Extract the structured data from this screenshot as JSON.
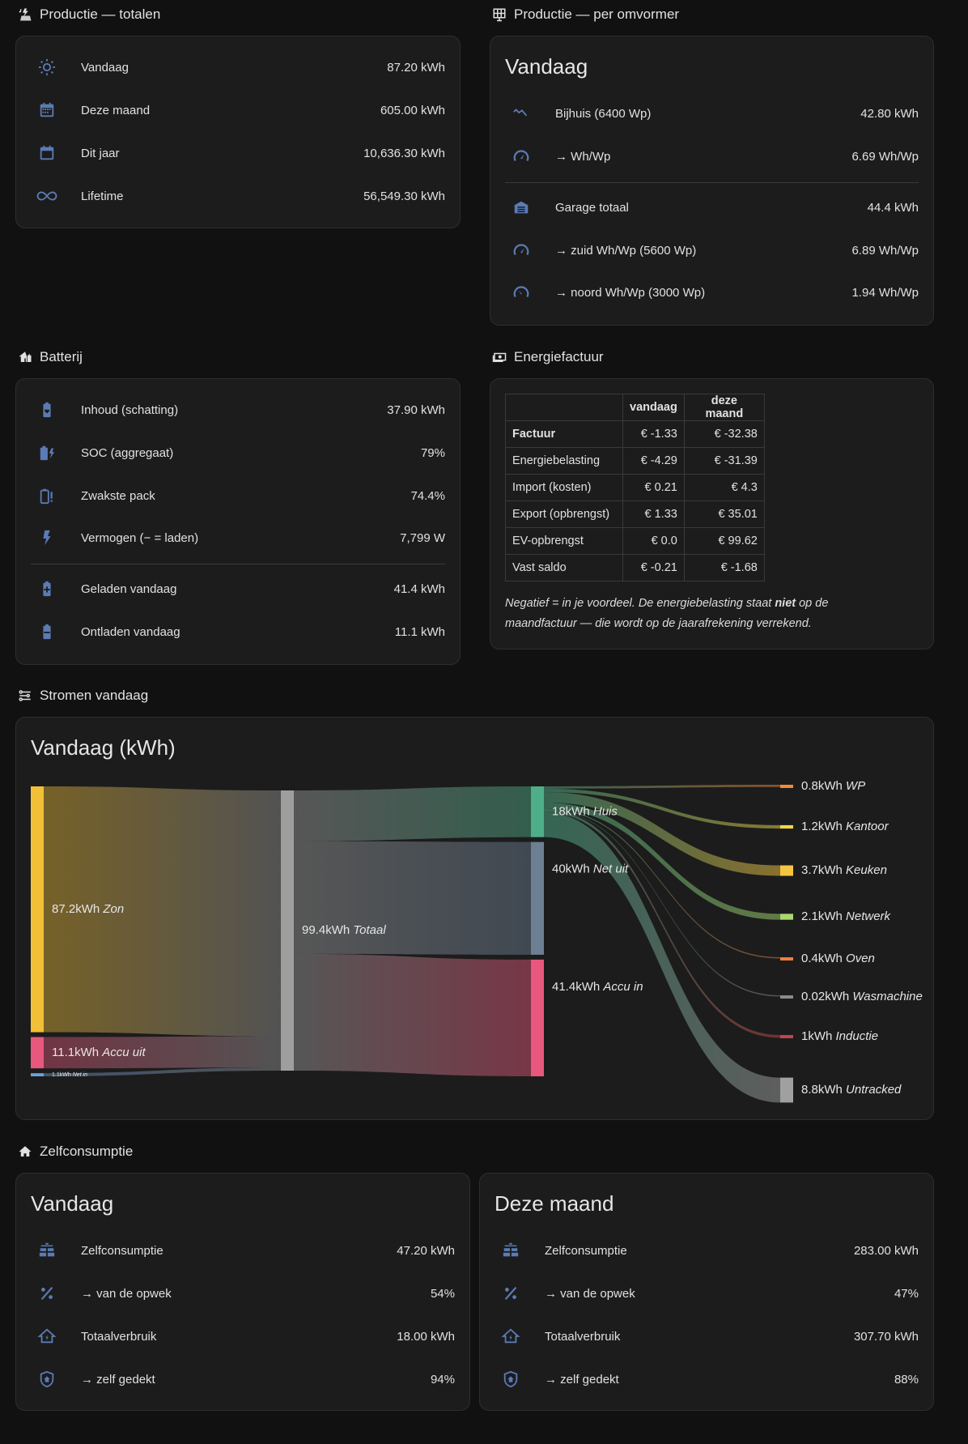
{
  "colors": {
    "icon": "#5b7bb5",
    "background": "#111111",
    "card": "#1c1c1c",
    "text": "#e1e1e1"
  },
  "productie_totalen": {
    "title": "Productie — totalen",
    "rows": [
      {
        "icon": "sun-icon",
        "label": "Vandaag",
        "value": "87.20 kWh"
      },
      {
        "icon": "calendar-month-icon",
        "label": "Deze maand",
        "value": "605.00 kWh"
      },
      {
        "icon": "calendar-icon",
        "label": "Dit jaar",
        "value": "10,636.30 kWh"
      },
      {
        "icon": "infinity-icon",
        "label": "Lifetime",
        "value": "56,549.30 kWh"
      }
    ]
  },
  "productie_omvormer": {
    "title": "Productie — per omvormer",
    "heading": "Vandaag",
    "rows": [
      {
        "icon": "chart-line-icon",
        "label": "Bijhuis (6400 Wp)",
        "value": "42.80 kWh"
      },
      {
        "icon": "speedometer-icon",
        "label": "→ Wh/Wp",
        "value": "6.69 Wh/Wp"
      },
      {
        "icon": "garage-icon",
        "label": "Garage totaal",
        "value": "44.4 kWh"
      },
      {
        "icon": "speedometer-icon",
        "label": "→ zuid Wh/Wp (5600 Wp)",
        "value": "6.89 Wh/Wp"
      },
      {
        "icon": "speedometer-slow-icon",
        "label": "→ noord Wh/Wp (3000 Wp)",
        "value": "1.94 Wh/Wp"
      }
    ]
  },
  "batterij": {
    "title": "Batterij",
    "rows": [
      {
        "icon": "battery-heart-icon",
        "label": "Inhoud (schatting)",
        "value": "37.90 kWh"
      },
      {
        "icon": "battery-charging-icon",
        "label": "SOC (aggregaat)",
        "value": "79%"
      },
      {
        "icon": "battery-alert-icon",
        "label": "Zwakste pack",
        "value": "74.4%"
      },
      {
        "icon": "lightning-icon",
        "label": "Vermogen (− = laden)",
        "value": "7,799 W"
      },
      {
        "icon": "battery-plus-icon",
        "label": "Geladen vandaag",
        "value": "41.4 kWh"
      },
      {
        "icon": "battery-minus-icon",
        "label": "Ontladen vandaag",
        "value": "11.1 kWh"
      }
    ]
  },
  "energiefactuur": {
    "title": "Energiefactuur",
    "headers": [
      "",
      "vandaag",
      "deze maand"
    ],
    "rows": [
      [
        "Factuur",
        "€ -1.33",
        "€ -32.38"
      ],
      [
        "Energiebelasting",
        "€ -4.29",
        "€ -31.39"
      ],
      [
        "Import (kosten)",
        "€ 0.21",
        "€ 4.3"
      ],
      [
        "Export (opbrengst)",
        "€ 1.33",
        "€ 35.01"
      ],
      [
        "EV-opbrengst",
        "€ 0.0",
        "€ 99.62"
      ],
      [
        "Vast saldo",
        "€ -0.21",
        "€ -1.68"
      ]
    ],
    "note_part1": "Negatief = in je voordeel. De energiebelasting staat ",
    "note_bold": "niet",
    "note_part2": " op de maandfactuur — die wordt op de jaarafrekening verrekend."
  },
  "stromen": {
    "title": "Stromen vandaag",
    "heading": "Vandaag (kWh)"
  },
  "chart_data": {
    "type": "sankey",
    "title": "Vandaag (kWh)",
    "sources": [
      {
        "name": "Zon",
        "value": 87.2,
        "label": "87.2kWh",
        "color": "#f2c037"
      },
      {
        "name": "Accu uit",
        "value": 11.1,
        "label": "11.1kWh",
        "color": "#e8577d"
      },
      {
        "name": "Net in",
        "value": 1.1,
        "label": "1.1kWh",
        "color": "#6fa0e0"
      }
    ],
    "total": {
      "name": "Totaal",
      "value": 99.4,
      "label": "99.4kWh",
      "color": "#9e9e9e"
    },
    "outputs": [
      {
        "name": "Huis",
        "value": 18,
        "label": "18kWh",
        "color": "#4fae8a"
      },
      {
        "name": "Net uit",
        "value": 40,
        "label": "40kWh",
        "color": "#6c7f93"
      },
      {
        "name": "Accu in",
        "value": 41.4,
        "label": "41.4kWh",
        "color": "#e8577d"
      }
    ],
    "consumers": [
      {
        "name": "WP",
        "value": 0.8,
        "label": "0.8kWh",
        "color": "#f08a3e"
      },
      {
        "name": "Kantoor",
        "value": 1.2,
        "label": "1.2kWh",
        "color": "#f0d84a"
      },
      {
        "name": "Keuken",
        "value": 3.7,
        "label": "3.7kWh",
        "color": "#f5c542"
      },
      {
        "name": "Netwerk",
        "value": 2.1,
        "label": "2.1kWh",
        "color": "#a8d86e"
      },
      {
        "name": "Oven",
        "value": 0.4,
        "label": "0.4kWh",
        "color": "#f07c3e"
      },
      {
        "name": "Wasmachine",
        "value": 0.02,
        "label": "0.02kWh",
        "color": "#8a8a8a"
      },
      {
        "name": "Inductie",
        "value": 1,
        "label": "1kWh",
        "color": "#c0474a"
      },
      {
        "name": "Untracked",
        "value": 8.8,
        "label": "8.8kWh",
        "color": "#a0a0a0"
      }
    ]
  },
  "zelfconsumptie": {
    "title": "Zelfconsumptie",
    "cards": [
      {
        "heading": "Vandaag",
        "rows": [
          {
            "icon": "solar-panel-icon",
            "label": "Zelfconsumptie",
            "value": "47.20 kWh"
          },
          {
            "icon": "percent-icon",
            "label": "→ van de opwek",
            "value": "54%"
          },
          {
            "icon": "home-lightning-icon",
            "label": "Totaalverbruik",
            "value": "18.00 kWh"
          },
          {
            "icon": "shield-home-icon",
            "label": "→ zelf gedekt",
            "value": "94%"
          }
        ]
      },
      {
        "heading": "Deze maand",
        "rows": [
          {
            "icon": "solar-panel-icon",
            "label": "Zelfconsumptie",
            "value": "283.00 kWh"
          },
          {
            "icon": "percent-icon",
            "label": "→ van de opwek",
            "value": "47%"
          },
          {
            "icon": "home-lightning-icon",
            "label": "Totaalverbruik",
            "value": "307.70 kWh"
          },
          {
            "icon": "shield-home-icon",
            "label": "→ zelf gedekt",
            "value": "88%"
          }
        ]
      }
    ]
  }
}
